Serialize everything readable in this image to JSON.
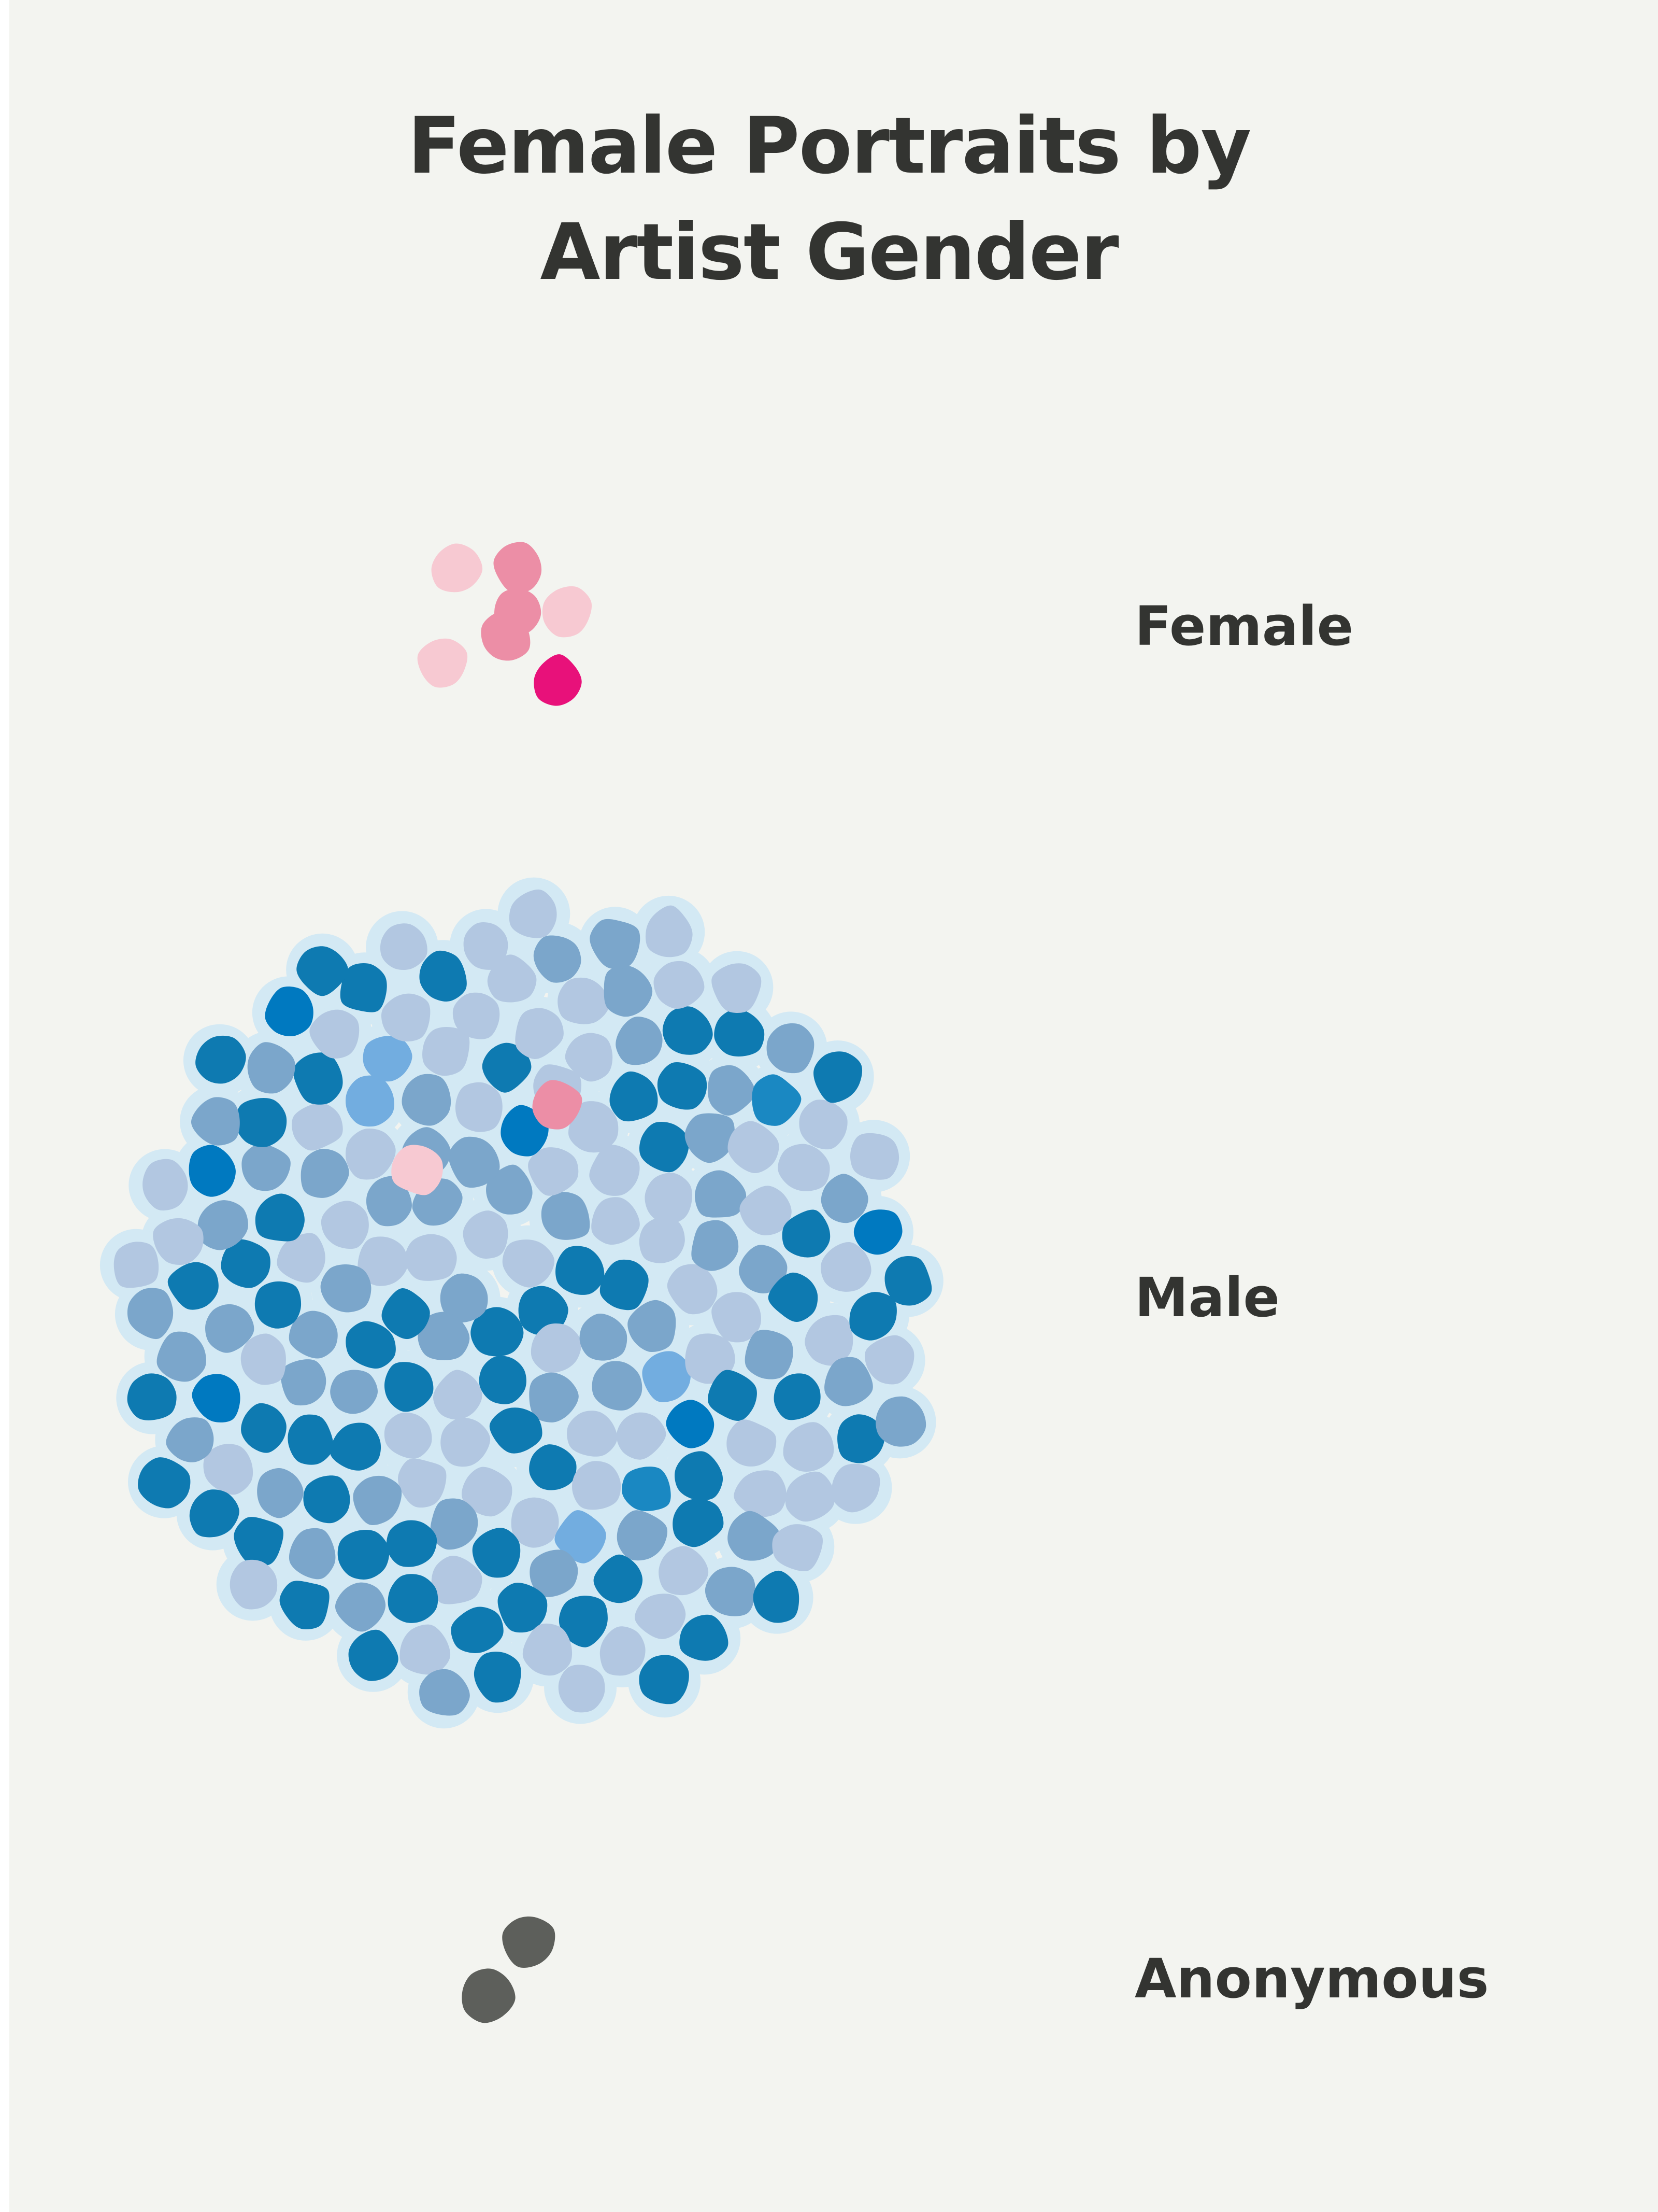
{
  "chart_data": {
    "type": "scatter",
    "title_line1": "Female Portraits by",
    "title_line2": "Artist Gender",
    "groups": [
      {
        "label": "Female",
        "count": 7
      },
      {
        "label": "Male",
        "count": 190
      },
      {
        "label": "Anonymous",
        "count": 2
      }
    ],
    "colors": {
      "female": [
        "#f7c9d2",
        "#ec8ea6",
        "#e8117a"
      ],
      "male": [
        "#b2c7e1",
        "#7ba6cb",
        "#0e7ab1",
        "#0079c0",
        "#72ade0",
        "#1a88c2"
      ],
      "anonymous": "#5d5f5b",
      "glow": "#d3e9f4"
    }
  }
}
